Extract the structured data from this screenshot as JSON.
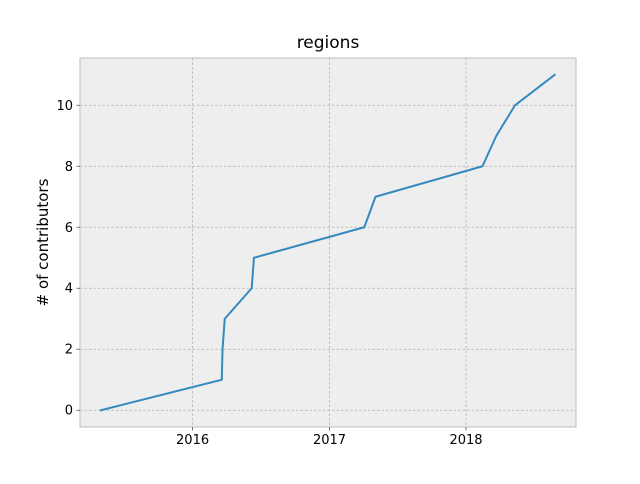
{
  "chart_data": {
    "type": "line",
    "title": "regions",
    "xlabel": "",
    "ylabel": "# of contributors",
    "x_type": "date",
    "x": [
      "2015-05-01",
      "2016-03-19",
      "2016-03-21",
      "2016-03-27",
      "2016-06-07",
      "2016-06-13",
      "2017-04-04",
      "2017-05-04",
      "2018-02-14",
      "2018-03-23",
      "2018-05-12",
      "2018-08-26"
    ],
    "series": [
      {
        "values": [
          0,
          1,
          2,
          3,
          4,
          5,
          6,
          7,
          8,
          9,
          10,
          11
        ],
        "color": "#348abd"
      }
    ],
    "xticks": [
      "2016",
      "2017",
      "2018"
    ],
    "yticks": [
      0,
      2,
      4,
      6,
      8,
      10
    ],
    "xlim": [
      "2015-03-06",
      "2018-10-22"
    ],
    "ylim": [
      -0.55,
      11.55
    ],
    "grid": true,
    "legend": "none",
    "style": {
      "plot_background": "#eeeeee",
      "grid_color": "#b2b2b2",
      "spine_color": "#bcbcbc",
      "line_color": "#348abd",
      "tick_color": "#555555"
    }
  }
}
